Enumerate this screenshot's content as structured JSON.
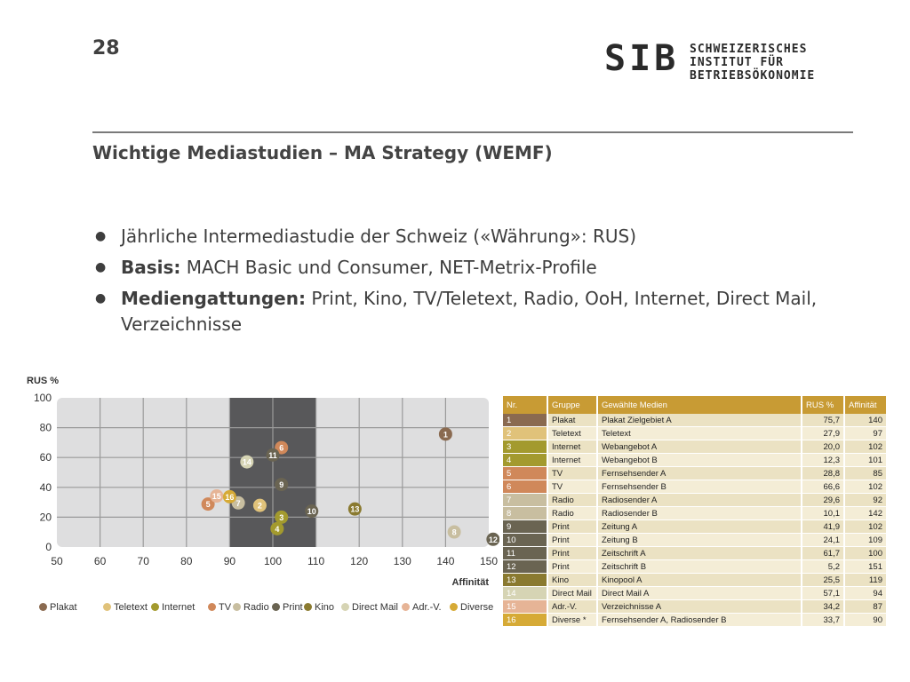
{
  "header": {
    "page_number": "28",
    "logo_mark": "SIB",
    "logo_lines": [
      "SCHWEIZERISCHES",
      "INSTITUT FÜR",
      "BETRIEBSÖKONOMIE"
    ]
  },
  "title": "Wichtige Mediastudien – MA Strategy (WEMF)",
  "bullets": [
    {
      "bold": "",
      "text": "Jährliche Intermediastudie der Schweiz («Währung»: RUS)"
    },
    {
      "bold": "Basis:",
      "text": " MACH Basic und Consumer, NET-Metrix-Profile"
    },
    {
      "bold": "Mediengattungen:",
      "text": " Print, Kino, TV/Teletext, Radio, OoH, Internet, Direct Mail, Verzeichnisse"
    }
  ],
  "colors": {
    "Plakat": "#8a6a50",
    "Teletext": "#e0c27a",
    "Internet": "#a39a2e",
    "TV": "#d0885a",
    "Radio": "#c8bea0",
    "Print": "#6a6452",
    "Kino": "#8a7a30",
    "Direct Mail": "#d6d4b4",
    "Adr.-V.": "#e6b496",
    "Diverse": "#d6aa36",
    "table_header": "#c89b34",
    "highlight_band": "#58585a"
  },
  "chart_data": {
    "type": "scatter",
    "ylabel": "RUS %",
    "xlabel": "Affinität",
    "xlim": [
      50,
      150
    ],
    "ylim": [
      0,
      100
    ],
    "xticks": [
      50,
      60,
      70,
      80,
      90,
      100,
      110,
      120,
      130,
      140,
      150
    ],
    "yticks": [
      0,
      20,
      40,
      60,
      80,
      100
    ],
    "highlight_range": [
      90,
      110
    ],
    "grid": true,
    "legend": "bottom",
    "points": [
      {
        "label": "1",
        "group": "Plakat",
        "x": 140,
        "y": 75.7
      },
      {
        "label": "2",
        "group": "Teletext",
        "x": 97,
        "y": 27.9
      },
      {
        "label": "3",
        "group": "Internet",
        "x": 102,
        "y": 20.0
      },
      {
        "label": "4",
        "group": "Internet",
        "x": 101,
        "y": 12.3
      },
      {
        "label": "5",
        "group": "TV",
        "x": 85,
        "y": 28.8
      },
      {
        "label": "6",
        "group": "TV",
        "x": 102,
        "y": 66.6
      },
      {
        "label": "7",
        "group": "Radio",
        "x": 92,
        "y": 29.6
      },
      {
        "label": "8",
        "group": "Radio",
        "x": 142,
        "y": 10.1
      },
      {
        "label": "9",
        "group": "Print",
        "x": 102,
        "y": 41.9
      },
      {
        "label": "10",
        "group": "Print",
        "x": 109,
        "y": 24.1
      },
      {
        "label": "11",
        "group": "Print",
        "x": 100,
        "y": 61.7
      },
      {
        "label": "12",
        "group": "Print",
        "x": 151,
        "y": 5.2
      },
      {
        "label": "13",
        "group": "Kino",
        "x": 119,
        "y": 25.5
      },
      {
        "label": "14",
        "group": "Direct Mail",
        "x": 94,
        "y": 57.1
      },
      {
        "label": "15",
        "group": "Adr.-V.",
        "x": 87,
        "y": 34.2
      },
      {
        "label": "16",
        "group": "Diverse",
        "x": 90,
        "y": 33.7
      }
    ]
  },
  "legend": [
    "Plakat",
    "Teletext",
    "Internet",
    "TV",
    "Radio",
    "Print",
    "Kino",
    "Direct Mail",
    "Adr.-V.",
    "Diverse"
  ],
  "table": {
    "headers": [
      "Nr.",
      "Gruppe",
      "Gewählte Medien",
      "RUS %",
      "Affinität"
    ],
    "rows": [
      {
        "nr": "1",
        "gruppe": "Plakat",
        "medien": "Plakat Zielgebiet A",
        "rus": "75,7",
        "aff": "140"
      },
      {
        "nr": "2",
        "gruppe": "Teletext",
        "medien": "Teletext",
        "rus": "27,9",
        "aff": "97"
      },
      {
        "nr": "3",
        "gruppe": "Internet",
        "medien": "Webangebot A",
        "rus": "20,0",
        "aff": "102"
      },
      {
        "nr": "4",
        "gruppe": "Internet",
        "medien": "Webangebot B",
        "rus": "12,3",
        "aff": "101"
      },
      {
        "nr": "5",
        "gruppe": "TV",
        "medien": "Fernsehsender A",
        "rus": "28,8",
        "aff": "85"
      },
      {
        "nr": "6",
        "gruppe": "TV",
        "medien": "Fernsehsender B",
        "rus": "66,6",
        "aff": "102"
      },
      {
        "nr": "7",
        "gruppe": "Radio",
        "medien": "Radiosender A",
        "rus": "29,6",
        "aff": "92"
      },
      {
        "nr": "8",
        "gruppe": "Radio",
        "medien": "Radiosender B",
        "rus": "10,1",
        "aff": "142"
      },
      {
        "nr": "9",
        "gruppe": "Print",
        "medien": "Zeitung A",
        "rus": "41,9",
        "aff": "102"
      },
      {
        "nr": "10",
        "gruppe": "Print",
        "medien": "Zeitung B",
        "rus": "24,1",
        "aff": "109"
      },
      {
        "nr": "11",
        "gruppe": "Print",
        "medien": "Zeitschrift A",
        "rus": "61,7",
        "aff": "100"
      },
      {
        "nr": "12",
        "gruppe": "Print",
        "medien": "Zeitschrift B",
        "rus": "5,2",
        "aff": "151"
      },
      {
        "nr": "13",
        "gruppe": "Kino",
        "medien": "Kinopool A",
        "rus": "25,5",
        "aff": "119"
      },
      {
        "nr": "14",
        "gruppe": "Direct Mail",
        "medien": "Direct Mail A",
        "rus": "57,1",
        "aff": "94"
      },
      {
        "nr": "15",
        "gruppe": "Adr.-V.",
        "medien": "Verzeichnisse A",
        "rus": "34,2",
        "aff": "87"
      },
      {
        "nr": "16",
        "gruppe": "Diverse *",
        "medien": "Fernsehsender A, Radiosender B",
        "rus": "33,7",
        "aff": "90"
      }
    ]
  }
}
